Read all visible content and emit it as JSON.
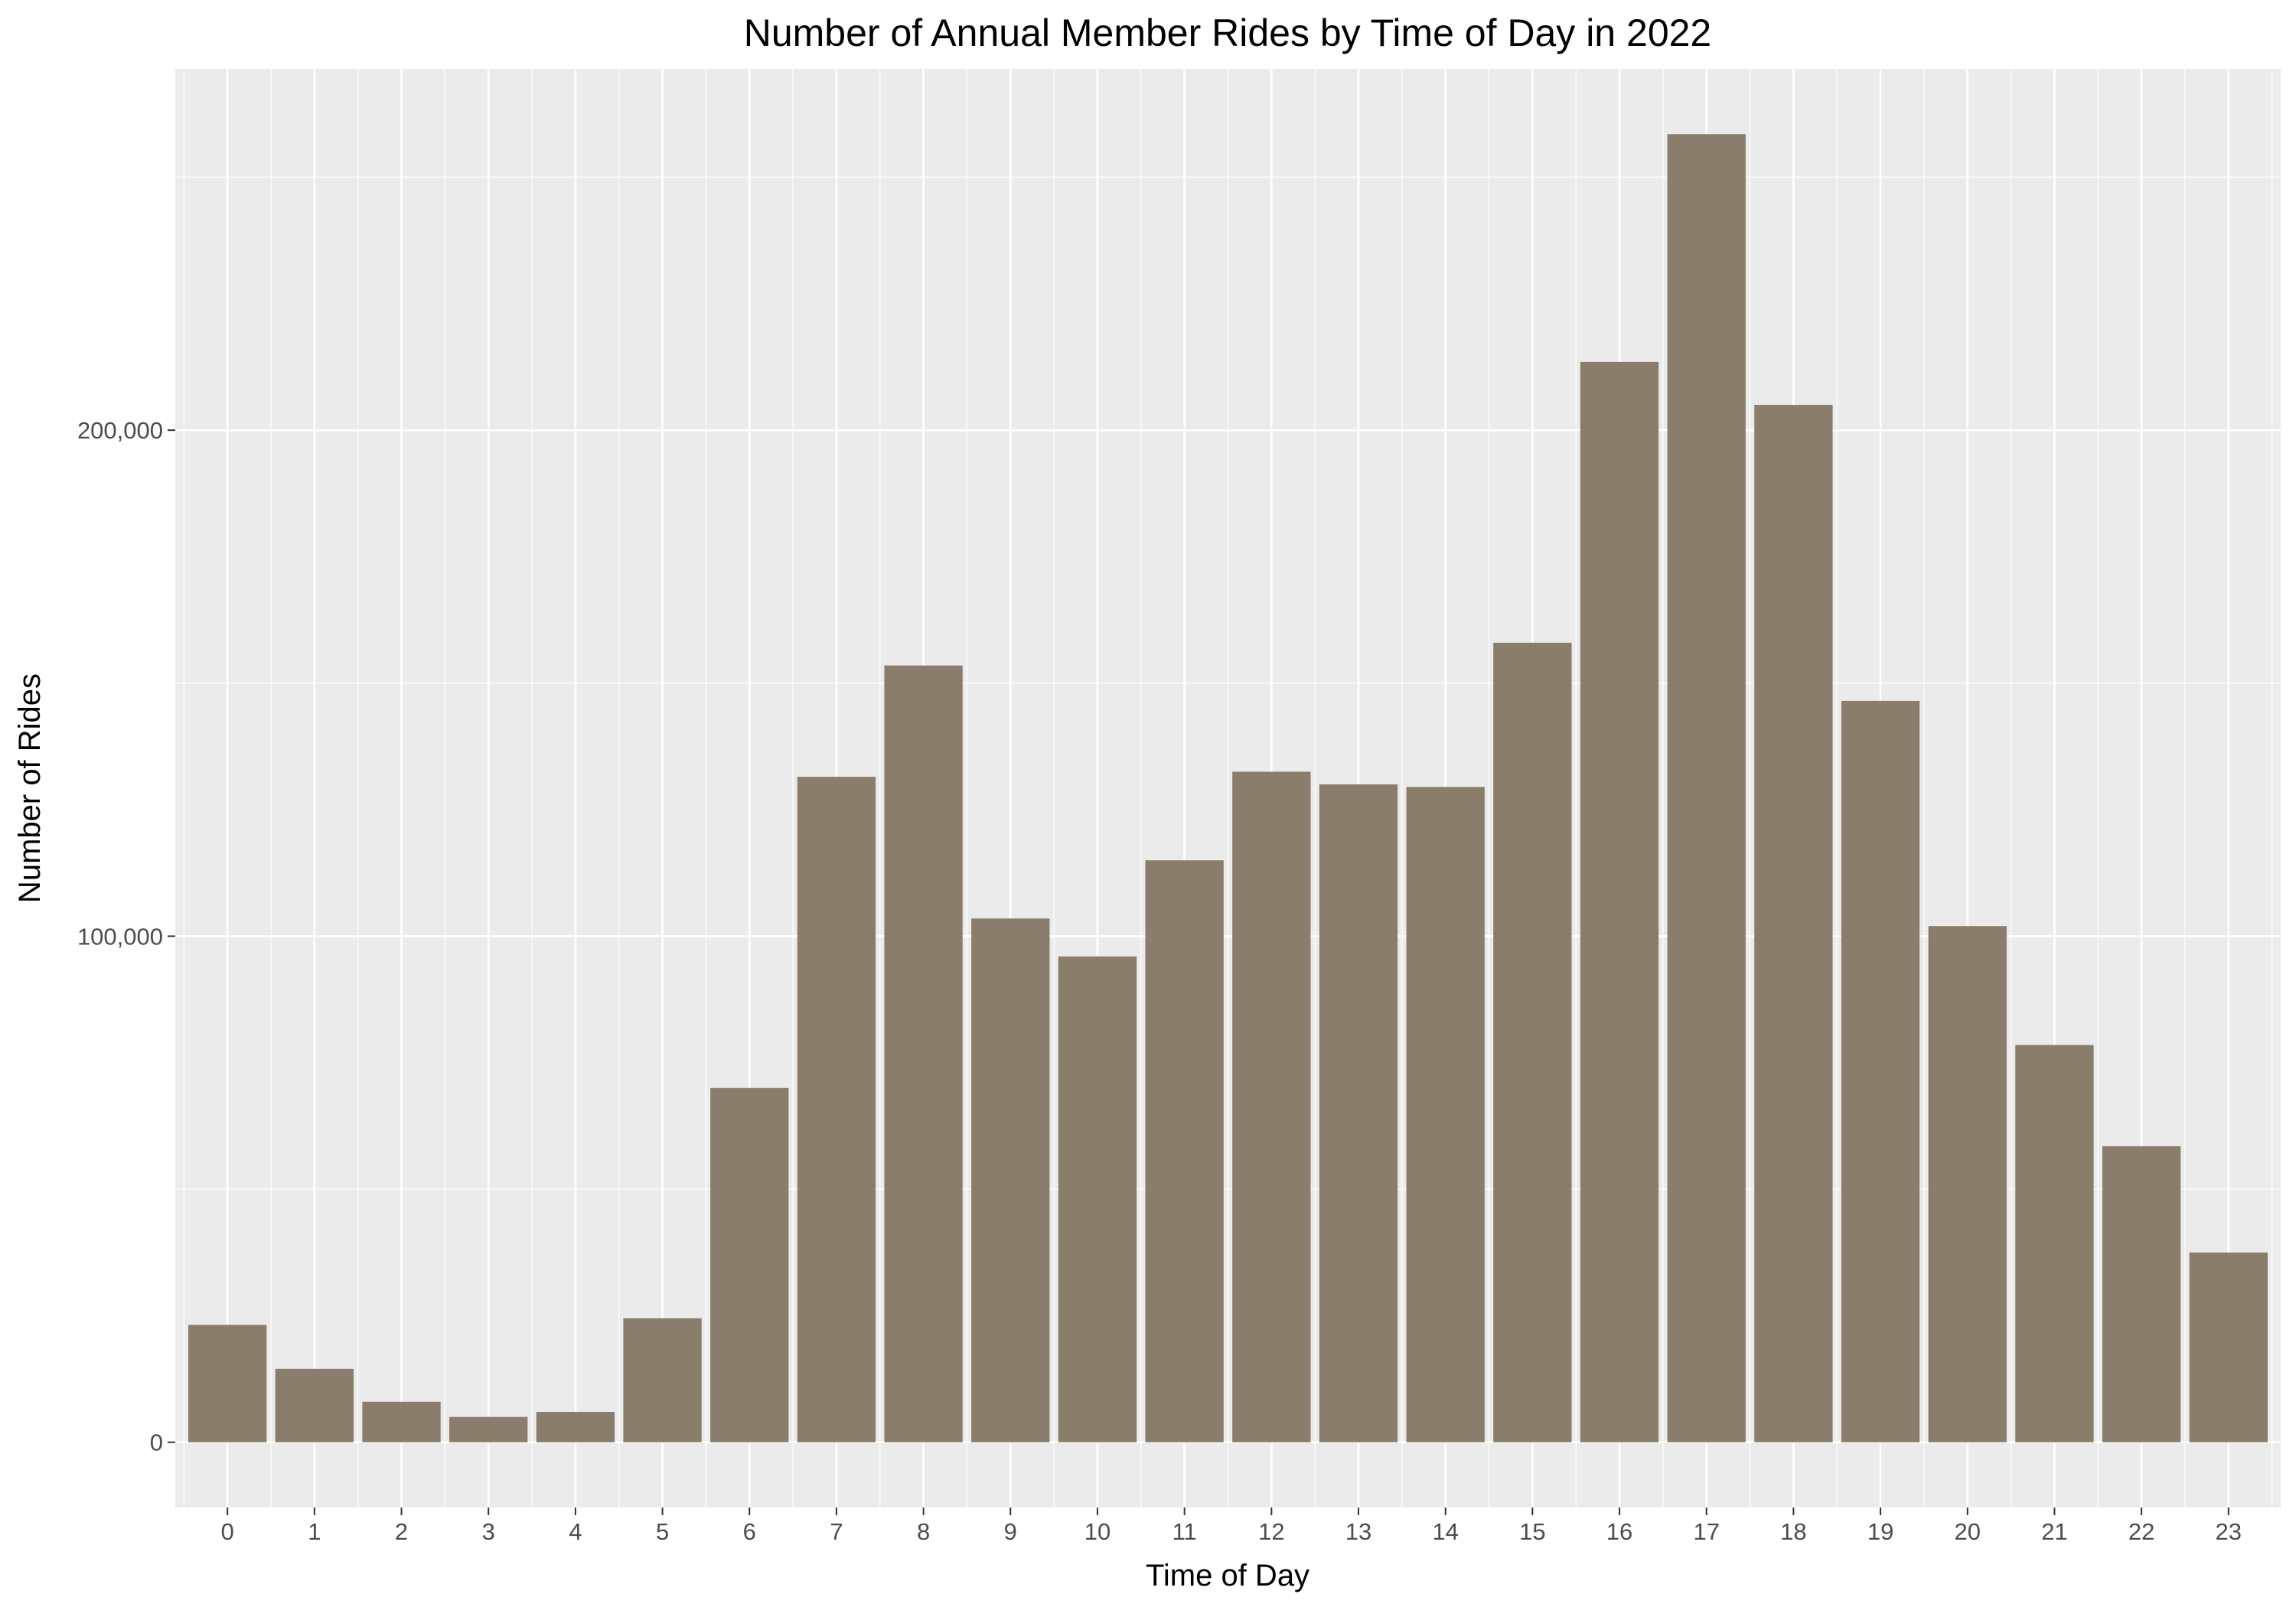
{
  "chart_data": {
    "type": "bar",
    "title": "Number of Annual Member Rides by Time of Day in 2022",
    "xlabel": "Time of Day",
    "ylabel": "Number of Rides",
    "categories": [
      "0",
      "1",
      "2",
      "3",
      "4",
      "5",
      "6",
      "7",
      "8",
      "9",
      "10",
      "11",
      "12",
      "13",
      "14",
      "15",
      "16",
      "17",
      "18",
      "19",
      "20",
      "21",
      "22",
      "23"
    ],
    "values": [
      23200,
      14500,
      8000,
      5000,
      6000,
      24500,
      70000,
      131500,
      153500,
      103500,
      96000,
      115000,
      132500,
      130000,
      129500,
      158000,
      213500,
      258500,
      205000,
      146500,
      102000,
      78500,
      58500,
      37500
    ],
    "y_ticks": [
      0,
      100000,
      200000
    ],
    "y_tick_labels": [
      "0",
      "100,000",
      "200,000"
    ],
    "ylim": [
      -12900,
      271400
    ],
    "grid": true,
    "colors": {
      "bar": "#8b7d6b",
      "panel": "#ebebeb",
      "grid": "#ffffff",
      "tick": "#333333"
    }
  }
}
